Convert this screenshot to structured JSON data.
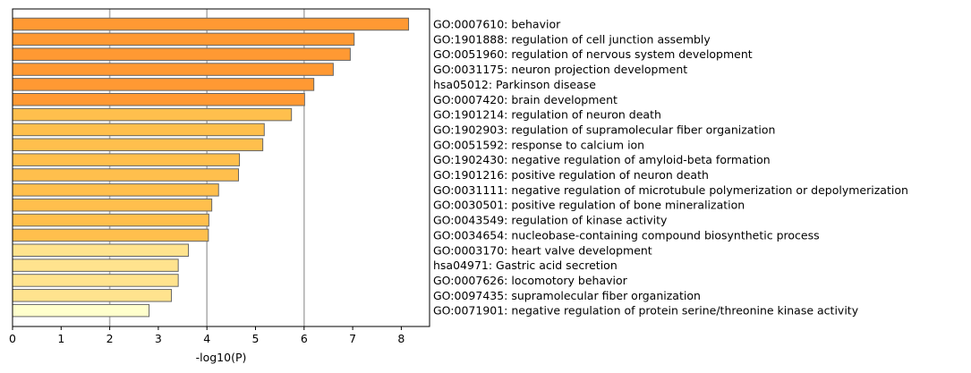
{
  "chart_data": {
    "type": "bar",
    "orientation": "horizontal",
    "xlabel": "-log10(P)",
    "ylabel": "",
    "xlim": [
      0,
      8.55
    ],
    "xticks": [
      0,
      1,
      2,
      3,
      4,
      5,
      6,
      7,
      8
    ],
    "grid": "vertical lines at x = 2, 4, 6",
    "labels_position": "right of axes",
    "colors": {
      "dark": "#FF9933",
      "medium": "#FFBF4D",
      "light": "#FFE38E",
      "lightest": "#FFFFCC",
      "edge": "#666666"
    },
    "bars": [
      {
        "label": "GO:0007610: behavior",
        "value": 8.15,
        "color": "dark"
      },
      {
        "label": "GO:1901888: regulation of cell junction assembly",
        "value": 7.03,
        "color": "dark"
      },
      {
        "label": "GO:0051960: regulation of nervous system development",
        "value": 6.95,
        "color": "dark"
      },
      {
        "label": "GO:0031175: neuron projection development",
        "value": 6.6,
        "color": "dark"
      },
      {
        "label": "hsa05012: Parkinson disease",
        "value": 6.2,
        "color": "dark"
      },
      {
        "label": "GO:0007420: brain development",
        "value": 6.01,
        "color": "dark"
      },
      {
        "label": "GO:1901214: regulation of neuron death",
        "value": 5.74,
        "color": "medium"
      },
      {
        "label": "GO:1902903: regulation of supramolecular fiber organization",
        "value": 5.18,
        "color": "medium"
      },
      {
        "label": "GO:0051592: response to calcium ion",
        "value": 5.15,
        "color": "medium"
      },
      {
        "label": "GO:1902430: negative regulation of amyloid-beta formation",
        "value": 4.67,
        "color": "medium"
      },
      {
        "label": "GO:1901216: positive regulation of neuron death",
        "value": 4.65,
        "color": "medium"
      },
      {
        "label": "GO:0031111: negative regulation of microtubule polymerization or depolymerization",
        "value": 4.24,
        "color": "medium"
      },
      {
        "label": "GO:0030501: positive regulation of bone mineralization",
        "value": 4.1,
        "color": "medium"
      },
      {
        "label": "GO:0043549: regulation of kinase activity",
        "value": 4.04,
        "color": "medium"
      },
      {
        "label": "GO:0034654: nucleobase-containing compound biosynthetic process",
        "value": 4.03,
        "color": "medium"
      },
      {
        "label": "GO:0003170: heart valve development",
        "value": 3.62,
        "color": "light"
      },
      {
        "label": "hsa04971: Gastric acid secretion",
        "value": 3.41,
        "color": "light"
      },
      {
        "label": "GO:0007626: locomotory behavior",
        "value": 3.41,
        "color": "light"
      },
      {
        "label": "GO:0097435: supramolecular fiber organization",
        "value": 3.27,
        "color": "light"
      },
      {
        "label": "GO:0071901: negative regulation of protein serine/threonine kinase activity",
        "value": 2.81,
        "color": "lightest"
      }
    ]
  }
}
